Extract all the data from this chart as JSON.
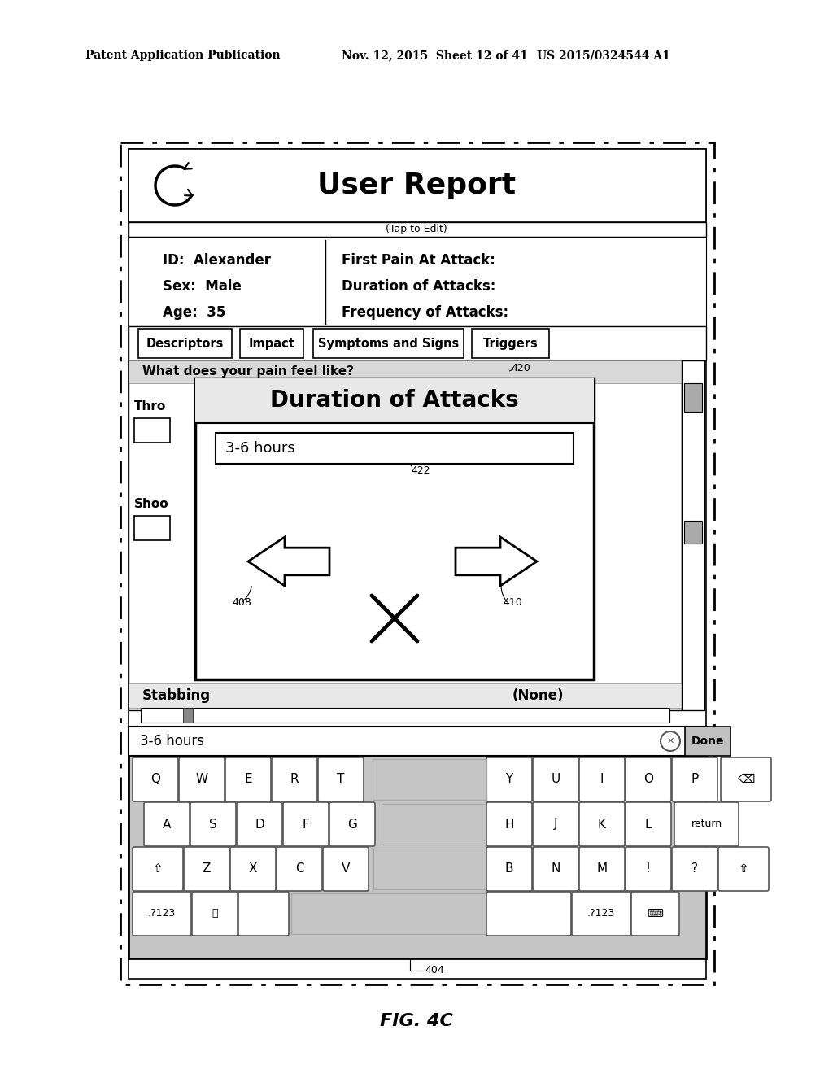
{
  "bg_color": "#ffffff",
  "header_text_left": "Patent Application Publication",
  "header_text_mid": "Nov. 12, 2015  Sheet 12 of 41",
  "header_text_right": "US 2015/0324544 A1",
  "fig_label": "FIG. 4C",
  "ref_404": "404",
  "title_text": "User Report",
  "tap_text": "(Tap to Edit)",
  "info_left": [
    "ID:  Alexander",
    "Sex:  Male",
    "Age:  35"
  ],
  "info_right": [
    "First Pain At Attack:",
    "Duration of Attacks:",
    "Frequency of Attacks:"
  ],
  "tabs": [
    "Descriptors",
    "Impact",
    "Symptoms and Signs",
    "Triggers"
  ],
  "question": "What does your pain feel like?",
  "ref_420": "420",
  "popup_title": "Duration of Attacks",
  "popup_input": "3-6 hours",
  "ref_422": "422",
  "ref_408": "408",
  "ref_410": "410",
  "left_label1": "Thro",
  "left_label2": "Shoo",
  "bottom_label1": "Stabbing",
  "bottom_label2": "(None)",
  "keyboard_input": "3-6 hours"
}
